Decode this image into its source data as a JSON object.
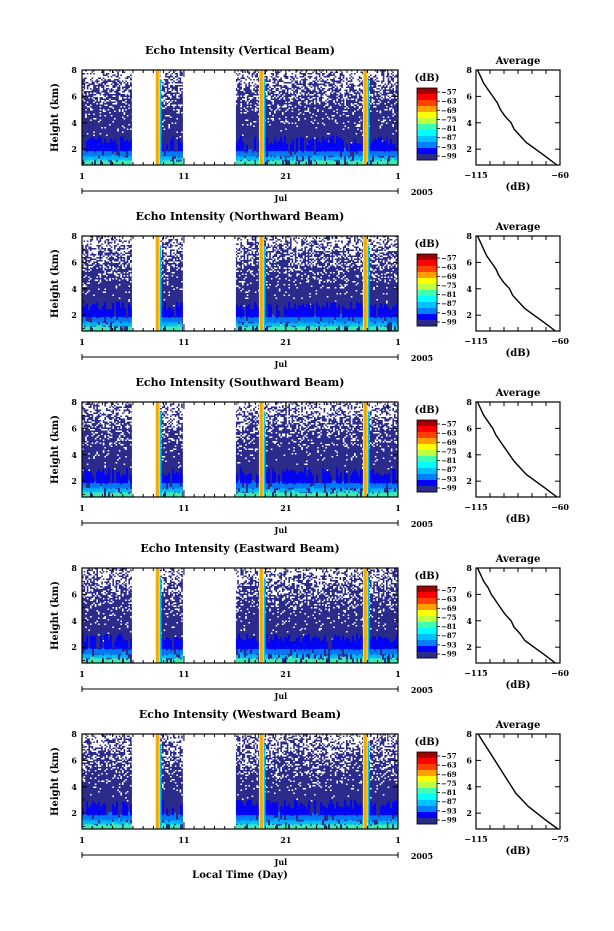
{
  "figure": {
    "xlabel": "Local Time (Day)",
    "month_label": "Jul",
    "year_label": "2005",
    "colorbar_unit": "(dB)",
    "colorbar_levels": [
      -57,
      -63,
      -69,
      -75,
      -81,
      -87,
      -93,
      -99
    ],
    "colors": [
      "#2b2b8c",
      "#0000ff",
      "#0080ff",
      "#00c0ff",
      "#00ffff",
      "#40ffb0",
      "#c0ff40",
      "#ffff00",
      "#ffa000",
      "#ff4000",
      "#ff0000",
      "#a00000"
    ]
  },
  "chart_data": [
    {
      "type": "heatmap",
      "title": "Echo Intensity (Vertical Beam)",
      "ylabel": "Height (km)",
      "x_ticks": [
        "1",
        "11",
        "21",
        "1"
      ],
      "y_ticks": [
        "2",
        "4",
        "6",
        "8"
      ],
      "xlim_days": [
        1,
        32
      ],
      "ylim_km": [
        0.8,
        8
      ],
      "data_gaps_days": [
        [
          5.9,
          8.2
        ],
        [
          10.9,
          16.1
        ]
      ],
      "high_echo_days": [
        8.4,
        18.6,
        28.8
      ],
      "profile": {
        "title": "Average",
        "xlabel": "(dB)",
        "x_ticks": [
          "-115",
          "-60"
        ],
        "xlim": [
          -115,
          -60
        ],
        "y_ticks": [
          "2",
          "4",
          "6",
          "8"
        ],
        "height_km": [
          0.8,
          1.5,
          2,
          2.5,
          3,
          3.5,
          4,
          4.5,
          5,
          5.5,
          6,
          6.5,
          7,
          7.5,
          8
        ],
        "db": [
          -62,
          -70,
          -76,
          -82,
          -86,
          -90,
          -92,
          -96,
          -99,
          -101,
          -104,
          -107,
          -110,
          -112,
          -114
        ]
      }
    },
    {
      "type": "heatmap",
      "title": "Echo Intensity (Northward Beam)",
      "ylabel": "Height (km)",
      "x_ticks": [
        "1",
        "11",
        "21",
        "1"
      ],
      "y_ticks": [
        "2",
        "4",
        "6",
        "8"
      ],
      "xlim_days": [
        1,
        32
      ],
      "ylim_km": [
        0.8,
        8
      ],
      "data_gaps_days": [
        [
          5.9,
          8.2
        ],
        [
          10.9,
          16.1
        ]
      ],
      "high_echo_days": [
        8.4,
        18.6,
        28.8
      ],
      "profile": {
        "title": "Average",
        "xlabel": "(dB)",
        "x_ticks": [
          "-115",
          "-60"
        ],
        "xlim": [
          -115,
          -60
        ],
        "y_ticks": [
          "2",
          "4",
          "6",
          "8"
        ],
        "height_km": [
          0.8,
          1.5,
          2,
          2.5,
          3,
          3.5,
          4,
          4.5,
          5,
          5.5,
          6,
          6.5,
          7,
          7.5,
          8
        ],
        "db": [
          -63,
          -71,
          -77,
          -83,
          -87,
          -91,
          -93,
          -97,
          -100,
          -102,
          -105,
          -108,
          -110,
          -112,
          -114
        ]
      }
    },
    {
      "type": "heatmap",
      "title": "Echo Intensity (Southward Beam)",
      "ylabel": "Height (km)",
      "x_ticks": [
        "1",
        "11",
        "21",
        "1"
      ],
      "y_ticks": [
        "2",
        "4",
        "6",
        "8"
      ],
      "xlim_days": [
        1,
        32
      ],
      "ylim_km": [
        0.8,
        8
      ],
      "data_gaps_days": [
        [
          5.9,
          8.2
        ],
        [
          10.9,
          16.1
        ]
      ],
      "high_echo_days": [
        8.4,
        18.6,
        28.8
      ],
      "profile": {
        "title": "Average",
        "xlabel": "(dB)",
        "x_ticks": [
          "-115",
          "-60"
        ],
        "xlim": [
          -115,
          -60
        ],
        "y_ticks": [
          "2",
          "4",
          "6",
          "8"
        ],
        "height_km": [
          0.8,
          1.5,
          2,
          2.5,
          3,
          3.5,
          4,
          4.5,
          5,
          5.5,
          6,
          6.5,
          7,
          7.5,
          8
        ],
        "db": [
          -62,
          -70,
          -76,
          -82,
          -86,
          -90,
          -93,
          -96,
          -99,
          -102,
          -104,
          -107,
          -110,
          -112,
          -114
        ]
      }
    },
    {
      "type": "heatmap",
      "title": "Echo Intensity (Eastward Beam)",
      "ylabel": "Height (km)",
      "x_ticks": [
        "1",
        "11",
        "21",
        "1"
      ],
      "y_ticks": [
        "2",
        "4",
        "6",
        "8"
      ],
      "xlim_days": [
        1,
        32
      ],
      "ylim_km": [
        0.8,
        8
      ],
      "data_gaps_days": [
        [
          5.9,
          8.2
        ],
        [
          10.9,
          16.1
        ]
      ],
      "high_echo_days": [
        8.4,
        18.6,
        28.8
      ],
      "profile": {
        "title": "Average",
        "xlabel": "(dB)",
        "x_ticks": [
          "-115",
          "-60"
        ],
        "xlim": [
          -115,
          -60
        ],
        "y_ticks": [
          "2",
          "4",
          "6",
          "8"
        ],
        "height_km": [
          0.8,
          1.5,
          2,
          2.5,
          3,
          3.5,
          4,
          4.5,
          5,
          5.5,
          6,
          6.5,
          7,
          7.5,
          8
        ],
        "db": [
          -63,
          -71,
          -77,
          -83,
          -86,
          -90,
          -92,
          -96,
          -99,
          -102,
          -105,
          -107,
          -110,
          -112,
          -114
        ]
      }
    },
    {
      "type": "heatmap",
      "title": "Echo Intensity (Westward Beam)",
      "ylabel": "Height (km)",
      "x_ticks": [
        "1",
        "11",
        "21",
        "1"
      ],
      "y_ticks": [
        "2",
        "4",
        "6",
        "8"
      ],
      "xlim_days": [
        1,
        32
      ],
      "ylim_km": [
        0.8,
        8
      ],
      "data_gaps_days": [
        [
          5.9,
          8.2
        ],
        [
          10.9,
          16.1
        ]
      ],
      "high_echo_days": [
        8.4,
        18.6,
        28.8
      ],
      "profile": {
        "title": "Average",
        "xlabel": "(dB)",
        "x_ticks": [
          "-115",
          "-75"
        ],
        "xlim": [
          -115,
          -75
        ],
        "y_ticks": [
          "2",
          "4",
          "6",
          "8"
        ],
        "height_km": [
          0.8,
          1.5,
          2,
          2.5,
          3,
          3.5,
          4,
          4.5,
          5,
          5.5,
          6,
          6.5,
          7,
          7.5,
          8
        ],
        "db": [
          -76,
          -82,
          -86,
          -90,
          -93,
          -96,
          -98,
          -100,
          -102,
          -104,
          -106,
          -108,
          -110,
          -112,
          -114
        ]
      }
    }
  ]
}
